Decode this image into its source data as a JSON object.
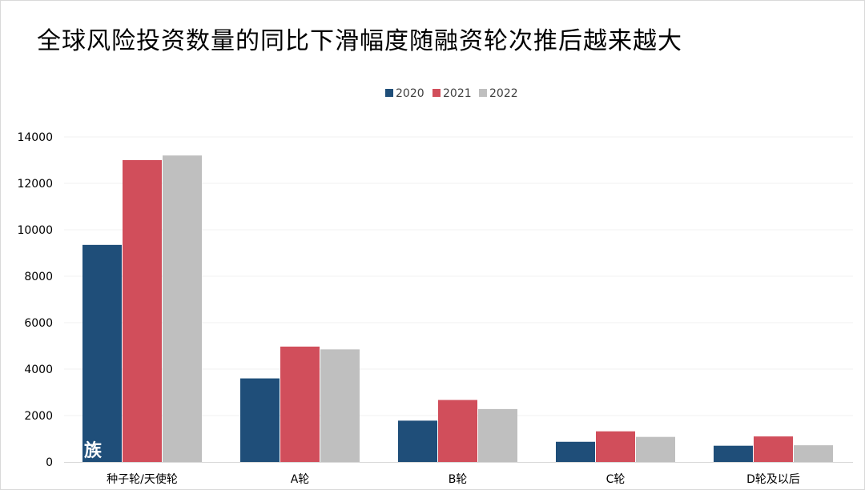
{
  "title": "全球风险投资数量的同比下滑幅度随融资轮次推后越来越大",
  "watermark": "族",
  "chart_data": {
    "type": "bar",
    "title": "全球风险投资数量的同比下滑幅度随融资轮次推后越来越大",
    "xlabel": "",
    "ylabel": "",
    "categories": [
      "种子轮/天使轮",
      "A轮",
      "B轮",
      "C轮",
      "D轮及以后"
    ],
    "series": [
      {
        "name": "2020",
        "color": "#1f4e79",
        "values": [
          9350,
          3600,
          1780,
          870,
          700
        ]
      },
      {
        "name": "2021",
        "color": "#d14e5b",
        "values": [
          13000,
          4970,
          2670,
          1320,
          1100
        ]
      },
      {
        "name": "2022",
        "color": "#bfbfbf",
        "values": [
          13200,
          4850,
          2280,
          1080,
          720
        ]
      }
    ],
    "ylim": [
      0,
      14000
    ],
    "yticks": [
      0,
      2000,
      4000,
      6000,
      8000,
      10000,
      12000,
      14000
    ],
    "grid": true,
    "legend_position": "top-center"
  }
}
